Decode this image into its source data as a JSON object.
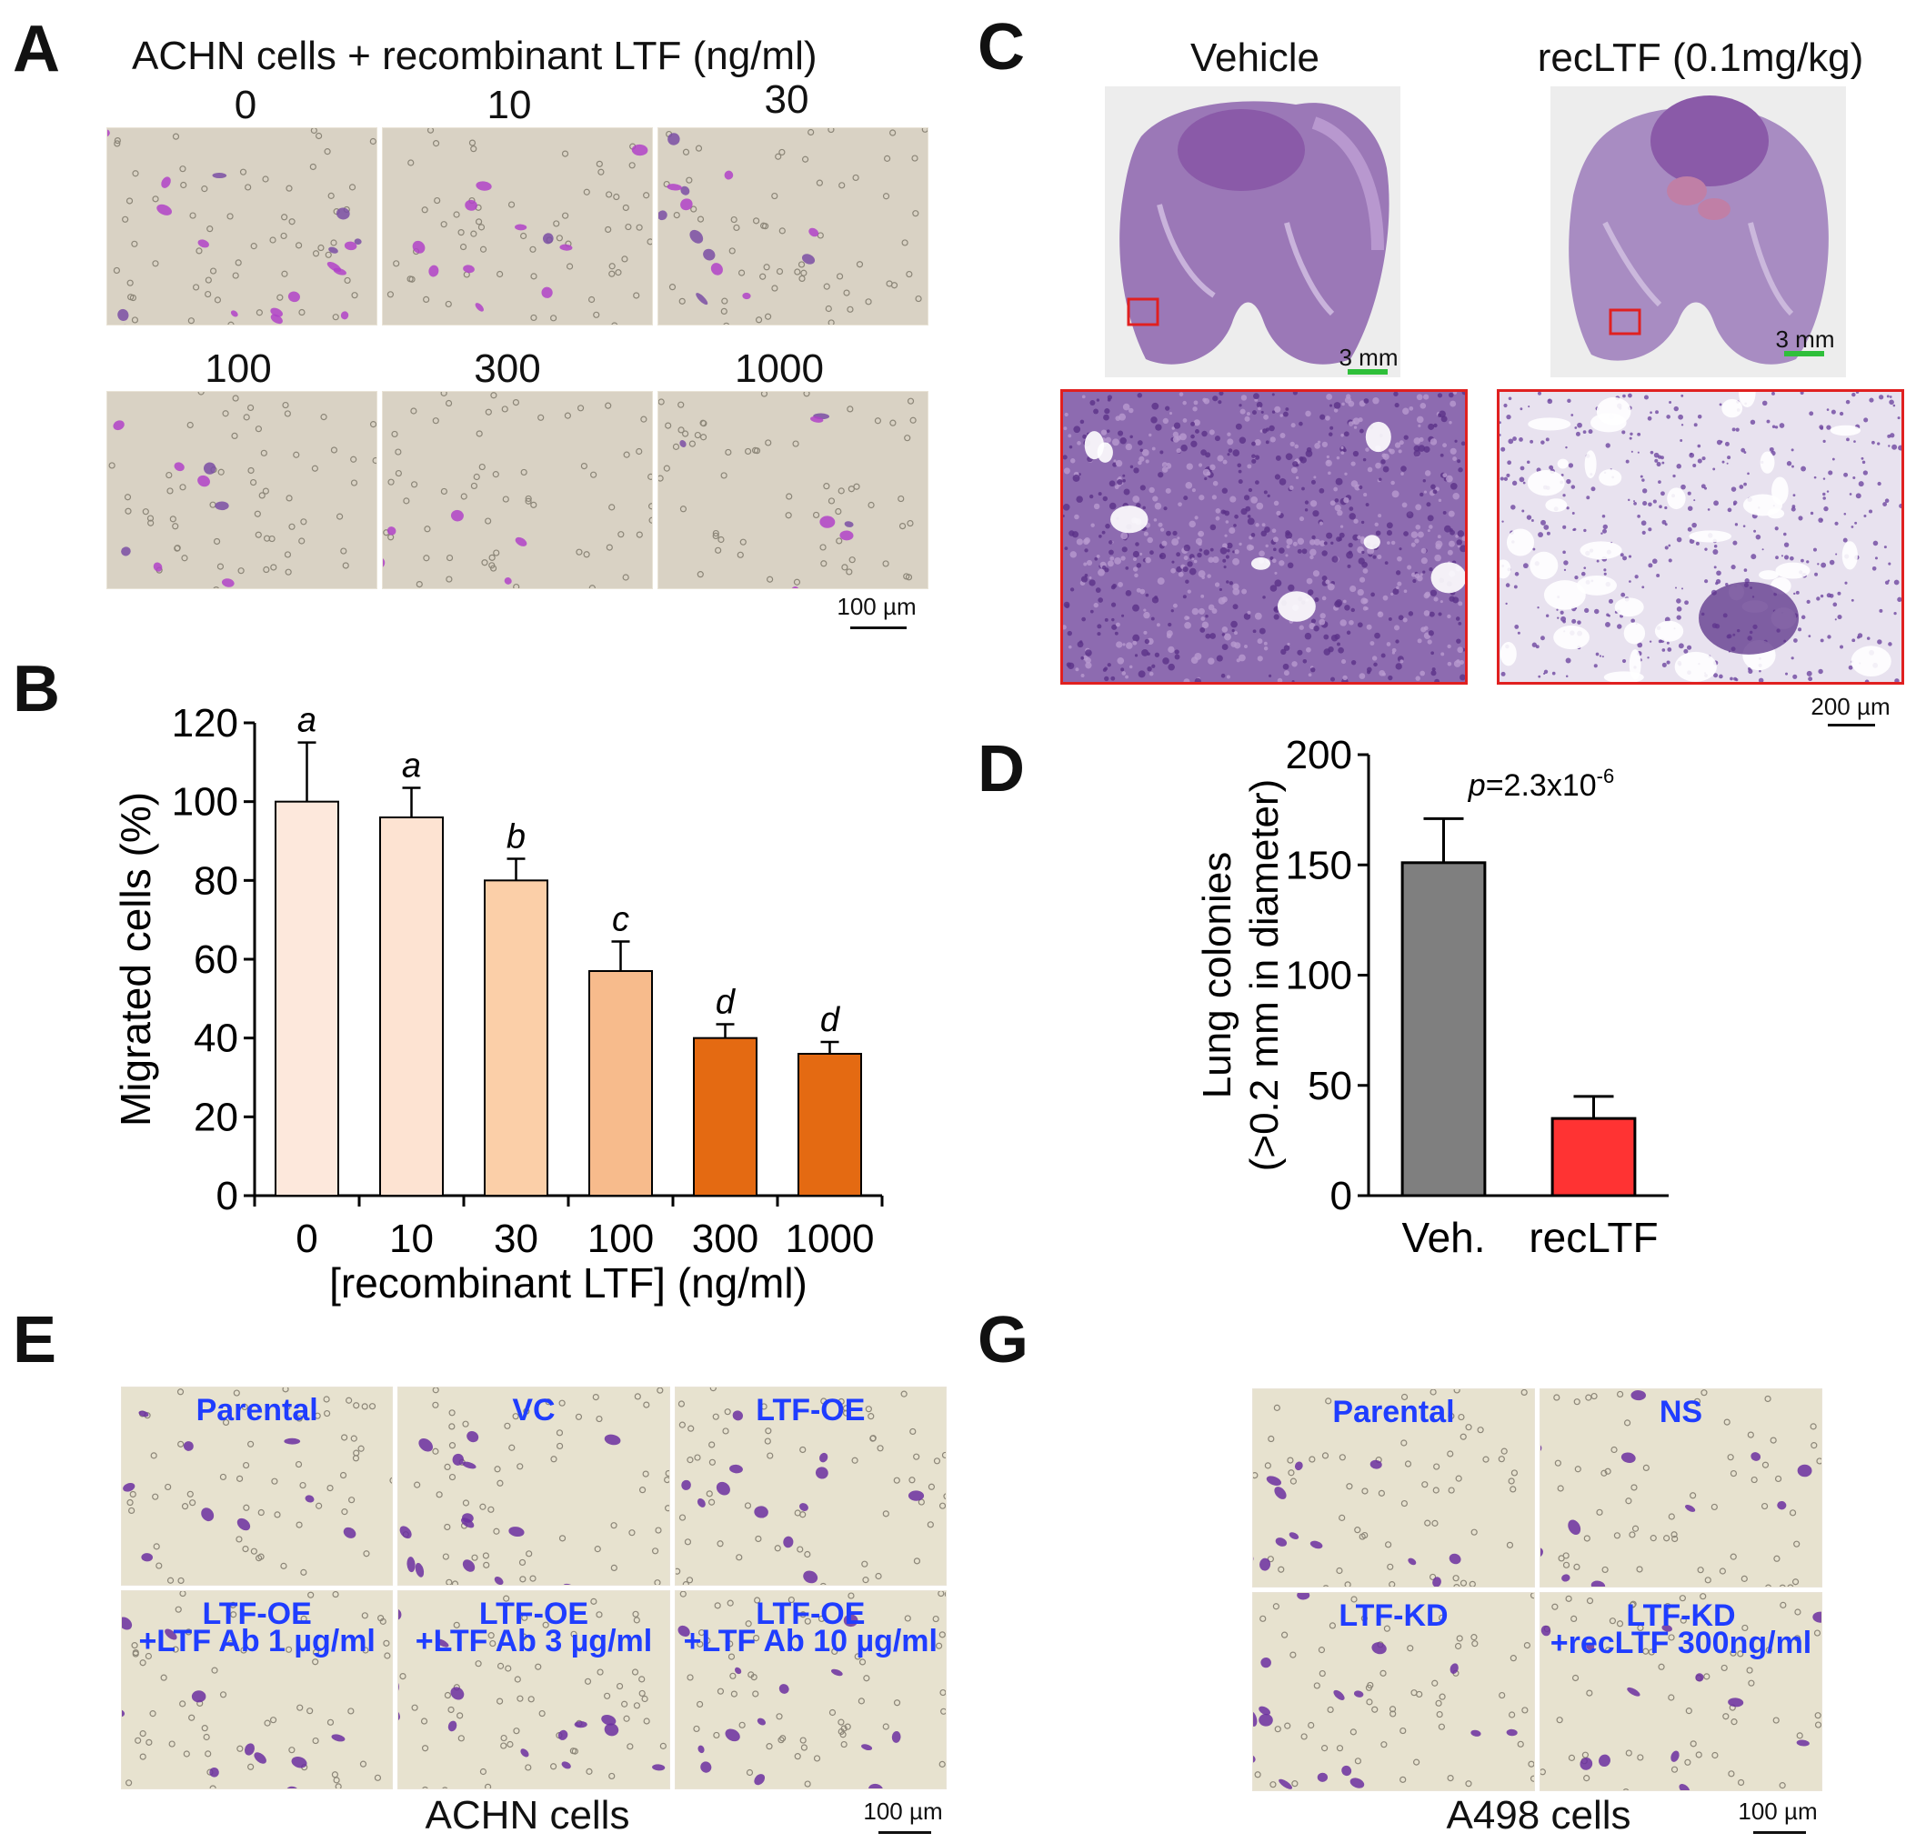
{
  "panels": {
    "A": {
      "letter": "A",
      "title": "ACHN cells + recombinant LTF (ng/ml)",
      "doses": [
        "0",
        "10",
        "30",
        "100",
        "300",
        "1000"
      ],
      "scale": "100 µm"
    },
    "B": {
      "letter": "B",
      "chart_data": {
        "type": "bar",
        "categories": [
          "0",
          "10",
          "30",
          "100",
          "300",
          "1000"
        ],
        "values": [
          100,
          96,
          80,
          57,
          40,
          36
        ],
        "errors": [
          15,
          7.5,
          5.5,
          7.5,
          3.5,
          3
        ],
        "significance_letters": [
          "a",
          "a",
          "b",
          "c",
          "d",
          "d"
        ],
        "bar_colors": [
          "#fde8dc",
          "#fde3d2",
          "#fbcfa8",
          "#f7bb8c",
          "#e46a12",
          "#e46a12"
        ],
        "xlabel": "[recombinant LTF] (ng/ml)",
        "ylabel": "Migrated cells (%)",
        "ylim": [
          0,
          120
        ],
        "yticks": [
          "0",
          "20",
          "40",
          "60",
          "80",
          "100",
          "120"
        ],
        "grid": false
      }
    },
    "C": {
      "letter": "C",
      "groups": [
        "Vehicle",
        "recLTF (0.1mg/kg)"
      ],
      "scale_overview": "3 mm",
      "scale_zoom": "200 µm"
    },
    "D": {
      "letter": "D",
      "chart_data": {
        "type": "bar",
        "categories": [
          "Veh.",
          "recLTF"
        ],
        "values": [
          151,
          35
        ],
        "errors": [
          20,
          10
        ],
        "bar_colors": [
          "#7f7f7f",
          "#ff3333"
        ],
        "ylabel_line1": "Lung colonies",
        "ylabel_line2": "(>0.2 mm in diameter)",
        "ylim": [
          0,
          200
        ],
        "yticks": [
          "0",
          "50",
          "100",
          "150",
          "200"
        ],
        "pvalue_prefix": "p",
        "pvalue_text": "=2.3x10",
        "pvalue_exp": "-6",
        "grid": false
      }
    },
    "E": {
      "letter": "E",
      "tiles": [
        [
          "Parental"
        ],
        [
          "VC"
        ],
        [
          "LTF-OE"
        ],
        [
          "LTF-OE",
          "+LTF Ab 1 µg/ml"
        ],
        [
          "LTF-OE",
          "+LTF Ab 3 µg/ml"
        ],
        [
          "LTF-OE",
          "+LTF Ab 10 µg/ml"
        ]
      ],
      "caption": "ACHN cells",
      "scale": "100 µm"
    },
    "G": {
      "letter": "G",
      "tiles": [
        [
          "Parental"
        ],
        [
          "NS"
        ],
        [
          "LTF-KD"
        ],
        [
          "LTF-KD",
          "+recLTF 300ng/ml"
        ]
      ],
      "caption": "A498 cells",
      "scale": "100 µm"
    }
  },
  "colors": {
    "micro_bg_a": "#d9d2c4",
    "micro_bg_e": "#e7e2cf",
    "cell_magenta": "#b043c8",
    "cell_violet": "#6b2fa0",
    "tissue_purple": "#8a5aa8",
    "zoom_border": "#e02020",
    "overlay_blue": "#1f3dff"
  }
}
